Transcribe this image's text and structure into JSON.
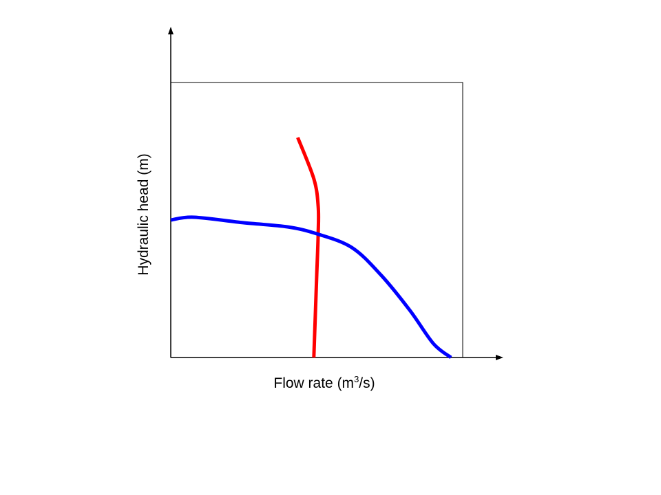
{
  "chart_data": {
    "type": "line",
    "xlabel": {
      "prefix": "Flow rate (m",
      "superscript": "3",
      "suffix": "/s)"
    },
    "ylabel": "Hydraulic head (m)",
    "xlim": [
      0,
      100
    ],
    "ylim": [
      0,
      100
    ],
    "grid": false,
    "colors": {
      "series_a": "#ff0000",
      "series_b": "#0000ff",
      "axes": "#000000"
    },
    "series": [
      {
        "color": "#ff0000",
        "points": [
          [
            43.5,
            80
          ],
          [
            49,
            65
          ],
          [
            50.5,
            55
          ],
          [
            50.5,
            45
          ],
          [
            50,
            30
          ],
          [
            49.5,
            15
          ],
          [
            49,
            0
          ]
        ]
      },
      {
        "color": "#0000ff",
        "points": [
          [
            0,
            50
          ],
          [
            8,
            51
          ],
          [
            25,
            49
          ],
          [
            40,
            47.5
          ],
          [
            50,
            45
          ],
          [
            62,
            40
          ],
          [
            72,
            30
          ],
          [
            82,
            17
          ],
          [
            90,
            5
          ],
          [
            96,
            0
          ]
        ]
      }
    ]
  }
}
